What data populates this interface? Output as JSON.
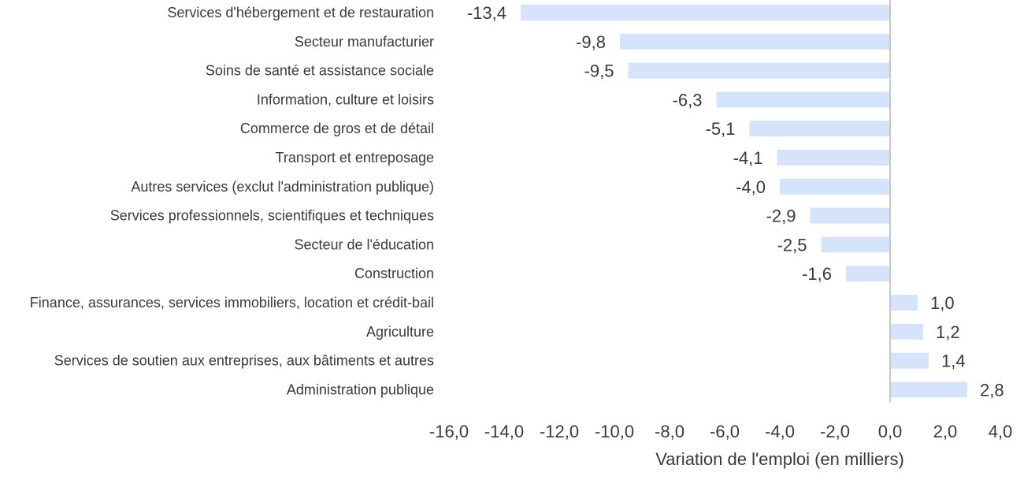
{
  "chart_data": {
    "type": "bar",
    "orientation": "horizontal",
    "categories": [
      "Services d'hébergement et de restauration",
      "Secteur manufacturier",
      "Soins de santé et assistance sociale",
      "Information, culture et loisirs",
      "Commerce de gros et de détail",
      "Transport et entreposage",
      "Autres services (exclut l'administration publique)",
      "Services professionnels, scientifiques et techniques",
      "Secteur de l'éducation",
      "Construction",
      "Finance, assurances, services immobiliers, location et crédit-bail",
      "Agriculture",
      "Services de soutien aux entreprises, aux bâtiments et autres",
      "Administration publique"
    ],
    "values": [
      -13.4,
      -9.8,
      -9.5,
      -6.3,
      -5.1,
      -4.1,
      -4.0,
      -2.9,
      -2.5,
      -1.6,
      1.0,
      1.2,
      1.4,
      2.8
    ],
    "value_labels": [
      "-13,4",
      "-9,8",
      "-9,5",
      "-6,3",
      "-5,1",
      "-4,1",
      "-4,0",
      "-2,9",
      "-2,5",
      "-1,6",
      "1,0",
      "1,2",
      "1,4",
      "2,8"
    ],
    "xlim": [
      -16,
      4
    ],
    "x_ticks": [
      -16,
      -14,
      -12,
      -10,
      -8,
      -6,
      -4,
      -2,
      0,
      2,
      4
    ],
    "x_tick_labels": [
      "-16,0",
      "-14,0",
      "-12,0",
      "-10,0",
      "-8,0",
      "-6,0",
      "-4,0",
      "-2,0",
      "0,0",
      "2,0",
      "4,0"
    ],
    "xlabel": "Variation de l'emploi (en milliers)",
    "title": "",
    "grid": false,
    "bar_color": "#d5e4fb",
    "zero_line_color": "#c8c8c8"
  }
}
